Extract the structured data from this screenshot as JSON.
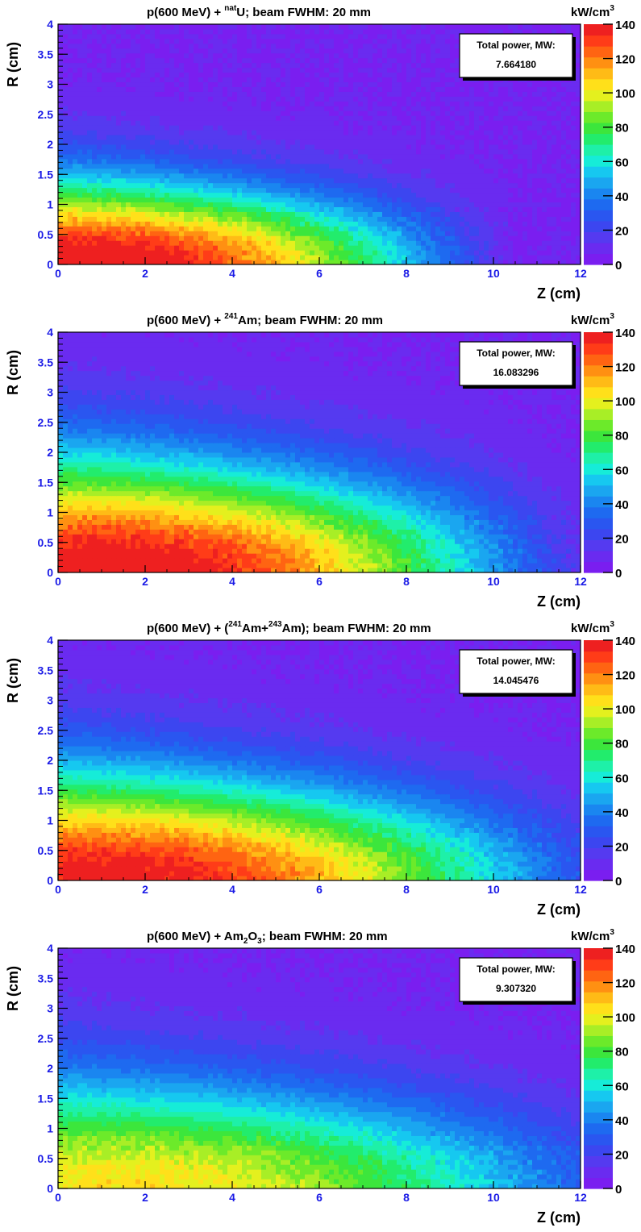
{
  "common": {
    "beam": "beam FWHM: 20 mm",
    "prefix": "p(600 MeV) + ",
    "x_label": "Z (cm)",
    "y_label": "R (cm)",
    "z_unit": "kW/cm",
    "z_unit_sup": "3",
    "box_title": "Total power, MW:",
    "x_ticks": [
      "0",
      "2",
      "4",
      "6",
      "8",
      "10",
      "12"
    ],
    "y_ticks": [
      "0",
      "0.5",
      "1",
      "1.5",
      "2",
      "2.5",
      "3",
      "3.5",
      "4"
    ],
    "z_ticks": [
      "0",
      "20",
      "40",
      "60",
      "80",
      "100",
      "120",
      "140"
    ],
    "palette": [
      "#7a1ef0",
      "#6a2bf0",
      "#553af0",
      "#3c46f0",
      "#2a56f0",
      "#1e6af0",
      "#1a86f0",
      "#1aa6f0",
      "#16c8f0",
      "#16ecd8",
      "#1ef0a8",
      "#22ec6c",
      "#3ce63c",
      "#6cea2a",
      "#a8ee26",
      "#e4f01e",
      "#ffe01a",
      "#ffbb16",
      "#ff9012",
      "#ff6412",
      "#ff3c18",
      "#ee2020"
    ]
  },
  "chart_data": [
    {
      "type": "heatmap",
      "title_parts": {
        "sup1": "nat",
        "main": "U;",
        "sup2": "",
        "main2": "",
        "sup3": "",
        "main3": "",
        "sub": ""
      },
      "total_power_mw": "7.664180",
      "xlim": [
        0,
        12
      ],
      "ylim": [
        0,
        4
      ],
      "zlim": [
        0,
        140
      ],
      "peak": 140,
      "peak_z": 1.5,
      "len": 10.5,
      "r0": 0.55,
      "rs": 0.9
    },
    {
      "type": "heatmap",
      "title_parts": {
        "sup1": "241",
        "main": "Am;",
        "sup2": "",
        "main2": "",
        "sup3": "",
        "main3": "",
        "sub": ""
      },
      "total_power_mw": "16.083296",
      "xlim": [
        0,
        12
      ],
      "ylim": [
        0,
        4
      ],
      "zlim": [
        0,
        140
      ],
      "peak": 140,
      "peak_z": 2.5,
      "len": 12.4,
      "r0": 0.75,
      "rs": 1.25
    },
    {
      "type": "heatmap",
      "title_parts": {
        "sup1": "",
        "main": "(",
        "sup2": "241",
        "main2": "Am+",
        "sup3": "243",
        "main3": "Am);",
        "sub": ""
      },
      "total_power_mw": "14.045476",
      "xlim": [
        0,
        12
      ],
      "ylim": [
        0,
        4
      ],
      "zlim": [
        0,
        140
      ],
      "peak": 135,
      "peak_z": 2.2,
      "len": 13.5,
      "r0": 0.6,
      "rs": 1.3
    },
    {
      "type": "heatmap",
      "title_parts": {
        "sup1": "",
        "main": "Am",
        "sup2": "",
        "main2": "",
        "sup3": "",
        "main3": "O",
        "sub": "2",
        "sub2": "3",
        "tail": ";"
      },
      "total_power_mw": "9.307320",
      "xlim": [
        0,
        12
      ],
      "ylim": [
        0,
        4
      ],
      "zlim": [
        0,
        140
      ],
      "peak": 100,
      "peak_z": 3.0,
      "len": 14.5,
      "r0": 0.55,
      "rs": 1.4
    }
  ]
}
